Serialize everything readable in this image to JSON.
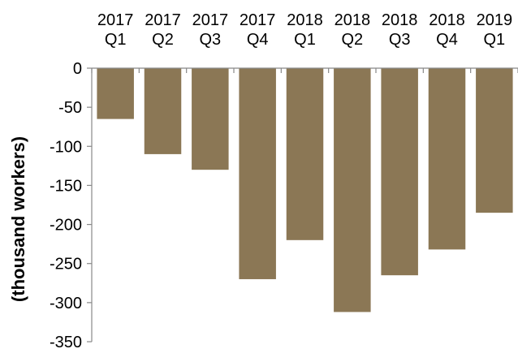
{
  "chart_data": {
    "type": "bar",
    "title": "",
    "xlabel": "",
    "ylabel": "(thousand workers)",
    "categories": [
      [
        "2017",
        "Q1"
      ],
      [
        "2017",
        "Q2"
      ],
      [
        "2017",
        "Q3"
      ],
      [
        "2017",
        "Q4"
      ],
      [
        "2018",
        "Q1"
      ],
      [
        "2018",
        "Q2"
      ],
      [
        "2018",
        "Q3"
      ],
      [
        "2018",
        "Q4"
      ],
      [
        "2019",
        "Q1"
      ]
    ],
    "series": [
      {
        "values": [
          -65,
          -110,
          -130,
          -270,
          -220,
          -312,
          -265,
          -232,
          -185
        ],
        "color": "#8B7755"
      }
    ],
    "ylim": [
      -350,
      0
    ],
    "yticks": [
      0,
      -50,
      -100,
      -150,
      -200,
      -250,
      -300,
      -350
    ],
    "ytick_labels": [
      "0",
      "-50",
      "-100",
      "-150",
      "-200",
      "-250",
      "-300",
      "-350"
    ],
    "grid": false,
    "legend": "none",
    "category_axis_position": "top"
  }
}
